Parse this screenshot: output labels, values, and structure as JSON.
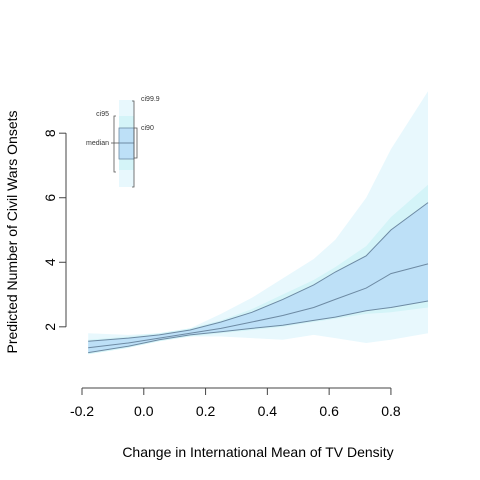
{
  "chart_data": {
    "type": "area",
    "xlabel": "Change in International Mean of TV Density",
    "ylabel": "Predicted Number of Civil Wars Onsets",
    "xlim": [
      -0.2,
      0.92
    ],
    "ylim": [
      0.6,
      9.4
    ],
    "x_ticks": [
      "-0.2",
      "0.0",
      "0.2",
      "0.4",
      "0.6",
      "0.8"
    ],
    "y_ticks": [
      "2",
      "4",
      "6",
      "8"
    ],
    "x": [
      -0.18,
      -0.05,
      0.05,
      0.15,
      0.25,
      0.35,
      0.45,
      0.55,
      0.62,
      0.72,
      0.8,
      0.92
    ],
    "series": [
      {
        "name": "ci99.9",
        "lower": [
          1.4,
          1.55,
          1.7,
          1.7,
          1.7,
          1.65,
          1.6,
          1.75,
          1.65,
          1.5,
          1.6,
          1.8
        ],
        "upper": [
          1.8,
          1.75,
          1.8,
          1.95,
          2.4,
          2.9,
          3.5,
          4.1,
          4.7,
          6.0,
          7.5,
          9.3
        ]
      },
      {
        "name": "ci95",
        "lower": [
          1.15,
          1.35,
          1.55,
          1.7,
          1.8,
          1.9,
          2.0,
          2.15,
          2.25,
          2.4,
          2.45,
          2.6
        ],
        "upper": [
          1.6,
          1.7,
          1.8,
          1.95,
          2.2,
          2.55,
          3.0,
          3.45,
          3.85,
          4.5,
          5.4,
          6.4
        ]
      },
      {
        "name": "ci90",
        "lower": [
          1.2,
          1.4,
          1.6,
          1.75,
          1.85,
          1.95,
          2.05,
          2.2,
          2.3,
          2.5,
          2.6,
          2.8
        ],
        "upper": [
          1.55,
          1.65,
          1.75,
          1.9,
          2.15,
          2.45,
          2.85,
          3.3,
          3.7,
          4.2,
          5.0,
          5.85
        ]
      },
      {
        "name": "median",
        "values": [
          1.35,
          1.5,
          1.65,
          1.8,
          1.95,
          2.15,
          2.35,
          2.6,
          2.85,
          3.2,
          3.65,
          3.95
        ]
      }
    ],
    "legend": {
      "placement": "top-left",
      "labels": [
        "ci99.9",
        "ci95",
        "ci90",
        "median"
      ]
    },
    "colors": {
      "ci999": "#e8f8fd",
      "ci95": "#d4f4f8",
      "ci90": "#bde0f7",
      "line": "#6d8aa3",
      "axis": "#444444"
    },
    "grid": false
  }
}
